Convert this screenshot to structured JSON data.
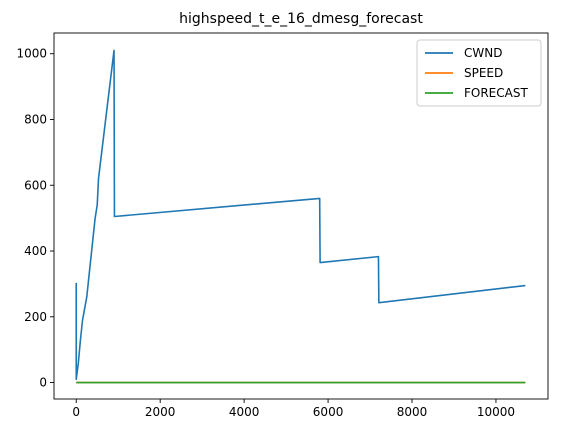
{
  "chart_data": {
    "type": "line",
    "title": "highspeed_t_e_16_dmesg_forecast",
    "xlabel": "",
    "ylabel": "",
    "xlim": [
      -530,
      11240
    ],
    "ylim": [
      -50,
      1063
    ],
    "x_ticks": [
      0,
      2000,
      4000,
      6000,
      8000,
      10000
    ],
    "y_ticks": [
      0,
      200,
      400,
      600,
      800,
      1000
    ],
    "x_tick_labels": [
      "0",
      "2000",
      "4000",
      "6000",
      "8000",
      "10000"
    ],
    "y_tick_labels": [
      "0",
      "200",
      "400",
      "600",
      "800",
      "1000"
    ],
    "grid": false,
    "legend": "top-right",
    "series": [
      {
        "name": "CWND",
        "color": "#1f77b4",
        "points": [
          [
            0,
            303
          ],
          [
            0,
            10
          ],
          [
            50,
            60
          ],
          [
            100,
            130
          ],
          [
            150,
            190
          ],
          [
            250,
            260
          ],
          [
            300,
            320
          ],
          [
            450,
            500
          ],
          [
            500,
            540
          ],
          [
            530,
            620
          ],
          [
            900,
            1010
          ],
          [
            910,
            505
          ],
          [
            5800,
            560
          ],
          [
            5810,
            365
          ],
          [
            7200,
            383
          ],
          [
            7210,
            243
          ],
          [
            10700,
            295
          ]
        ]
      },
      {
        "name": "SPEED",
        "color": "#ff7f0e",
        "points": [
          [
            0,
            0
          ],
          [
            10700,
            0
          ]
        ]
      },
      {
        "name": "FORECAST",
        "color": "#2ca02c",
        "points": [
          [
            0,
            0
          ],
          [
            10700,
            0
          ]
        ]
      }
    ]
  }
}
